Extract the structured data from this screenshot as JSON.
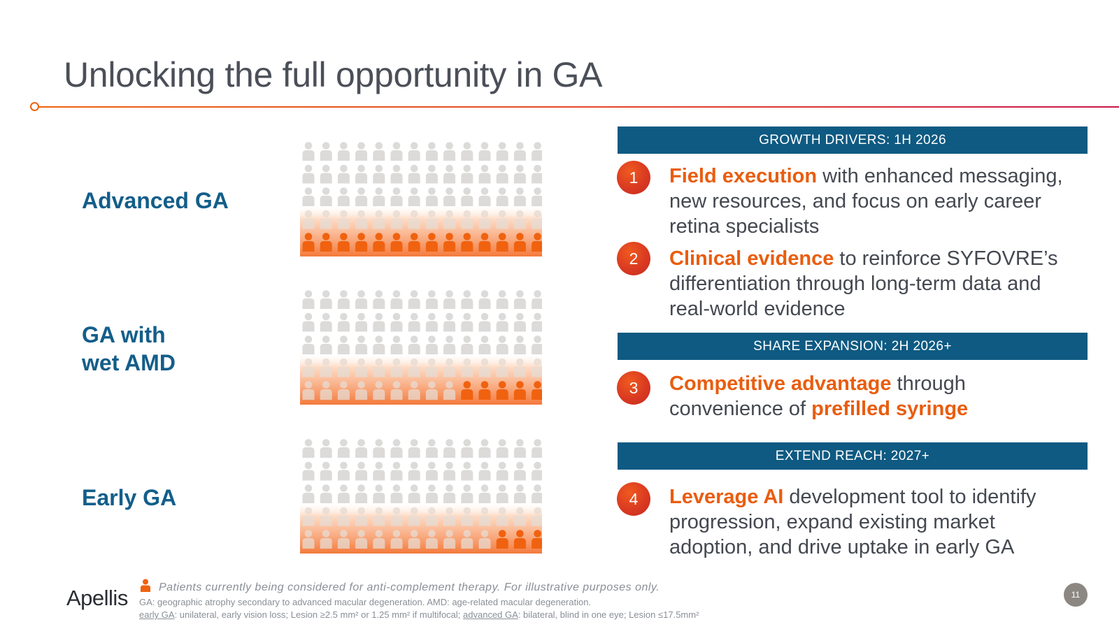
{
  "title": "Unlocking the full opportunity in GA",
  "segments": [
    {
      "label_lines": [
        "Advanced GA"
      ],
      "highlighted_people": 14
    },
    {
      "label_lines": [
        "GA with",
        "wet AMD"
      ],
      "highlighted_people": 5
    },
    {
      "label_lines": [
        "Early GA"
      ],
      "highlighted_people": 3
    }
  ],
  "pictogram": {
    "columns": 14,
    "rows": 5,
    "highlight_color": "#f0620f",
    "base_color": "#dcdbd9"
  },
  "bands": [
    {
      "label": "GROWTH DRIVERS: 1H 2026"
    },
    {
      "label": "SHARE EXPANSION: 2H 2026+"
    },
    {
      "label": "EXTEND REACH: 2027+"
    }
  ],
  "drivers": [
    {
      "number": "1",
      "lines": [
        [
          {
            "t": "Field execution",
            "hl": true
          },
          {
            "t": " with enhanced messaging,",
            "hl": false
          }
        ],
        [
          {
            "t": "new resources, and focus on early career",
            "hl": false
          }
        ],
        [
          {
            "t": "retina specialists",
            "hl": false
          }
        ]
      ]
    },
    {
      "number": "2",
      "lines": [
        [
          {
            "t": "Clinical evidence",
            "hl": true
          },
          {
            "t": " to reinforce SYFOVRE’s",
            "hl": false
          }
        ],
        [
          {
            "t": "differentiation through long-term data and",
            "hl": false
          }
        ],
        [
          {
            "t": "real-world evidence",
            "hl": false
          }
        ]
      ]
    },
    {
      "number": "3",
      "lines": [
        [
          {
            "t": "Competitive advantage",
            "hl": true
          },
          {
            "t": " through",
            "hl": false
          }
        ],
        [
          {
            "t": "convenience of ",
            "hl": false
          },
          {
            "t": "prefilled syringe",
            "hl": true
          }
        ]
      ]
    },
    {
      "number": "4",
      "lines": [
        [
          {
            "t": "Leverage AI",
            "hl": true
          },
          {
            "t": " development tool to identify",
            "hl": false
          }
        ],
        [
          {
            "t": "progression, expand existing market",
            "hl": false
          }
        ],
        [
          {
            "t": "adoption, and drive uptake in early GA",
            "hl": false
          }
        ]
      ]
    }
  ],
  "footnote": {
    "main": "Patients currently being considered for anti-complement therapy. For illustrative purposes only.",
    "line1": "GA: geographic atrophy secondary to advanced macular degeneration. AMD: age-related macular degeneration.",
    "line2_parts": [
      {
        "t": "early GA",
        "u": true
      },
      {
        "t": ": unilateral, early vision loss; Lesion ≥2.5 mm² or 1.25 mm² if multifocal; ",
        "u": false
      },
      {
        "t": "advanced GA",
        "u": true
      },
      {
        "t": ": bilateral, blind in one eye; Lesion ≤17.5mm²",
        "u": false
      }
    ]
  },
  "logo": "Apellis",
  "page_number": "11"
}
